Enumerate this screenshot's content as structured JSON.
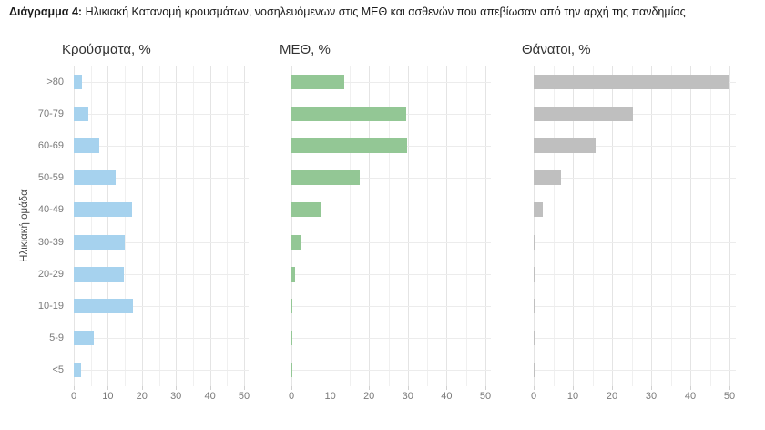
{
  "caption": {
    "prefix": "Διάγραμμα 4:",
    "text": "Ηλικιακή Κατανομή κρουσμάτων, νοσηλευόμενων στις ΜΕΘ και ασθενών που απεβίωσαν από την αρχή της πανδημίας"
  },
  "ylabel": "Ηλικιακή ομάδα",
  "chart_data": [
    {
      "type": "bar",
      "orientation": "horizontal",
      "title": "Κρούσματα, %",
      "categories": [
        ">80",
        "70-79",
        "60-69",
        "50-59",
        "40-49",
        "30-39",
        "20-29",
        "10-19",
        "5-9",
        "<5"
      ],
      "values": [
        2.4,
        4.4,
        7.5,
        12.2,
        17.0,
        15.0,
        14.8,
        17.3,
        6.0,
        2.2
      ],
      "color": "#a6d2ee",
      "xlabel": "",
      "xlim": [
        0,
        50
      ],
      "xticks": [
        0,
        10,
        20,
        30,
        40,
        50
      ],
      "grid": "on",
      "legend": "none"
    },
    {
      "type": "bar",
      "orientation": "horizontal",
      "title": "ΜΕΘ, %",
      "categories": [
        ">80",
        "70-79",
        "60-69",
        "50-59",
        "40-49",
        "30-39",
        "20-29",
        "10-19",
        "5-9",
        "<5"
      ],
      "values": [
        13.5,
        29.5,
        29.8,
        17.6,
        7.4,
        2.5,
        1.0,
        0.2,
        0.1,
        0.2
      ],
      "color": "#93c795",
      "xlabel": "",
      "xlim": [
        0,
        50
      ],
      "xticks": [
        0,
        10,
        20,
        30,
        40,
        50
      ],
      "grid": "on",
      "legend": "none"
    },
    {
      "type": "bar",
      "orientation": "horizontal",
      "title": "Θάνατοι, %",
      "categories": [
        ">80",
        "70-79",
        "60-69",
        "50-59",
        "40-49",
        "30-39",
        "20-29",
        "10-19",
        "5-9",
        "<5"
      ],
      "values": [
        50.0,
        25.3,
        15.8,
        7.0,
        2.3,
        0.4,
        0.15,
        0.1,
        0.05,
        0.05
      ],
      "color": "#bfbfbf",
      "xlabel": "",
      "xlim": [
        0,
        50
      ],
      "xticks": [
        0,
        10,
        20,
        30,
        40,
        50
      ],
      "grid": "on",
      "legend": "none"
    }
  ]
}
